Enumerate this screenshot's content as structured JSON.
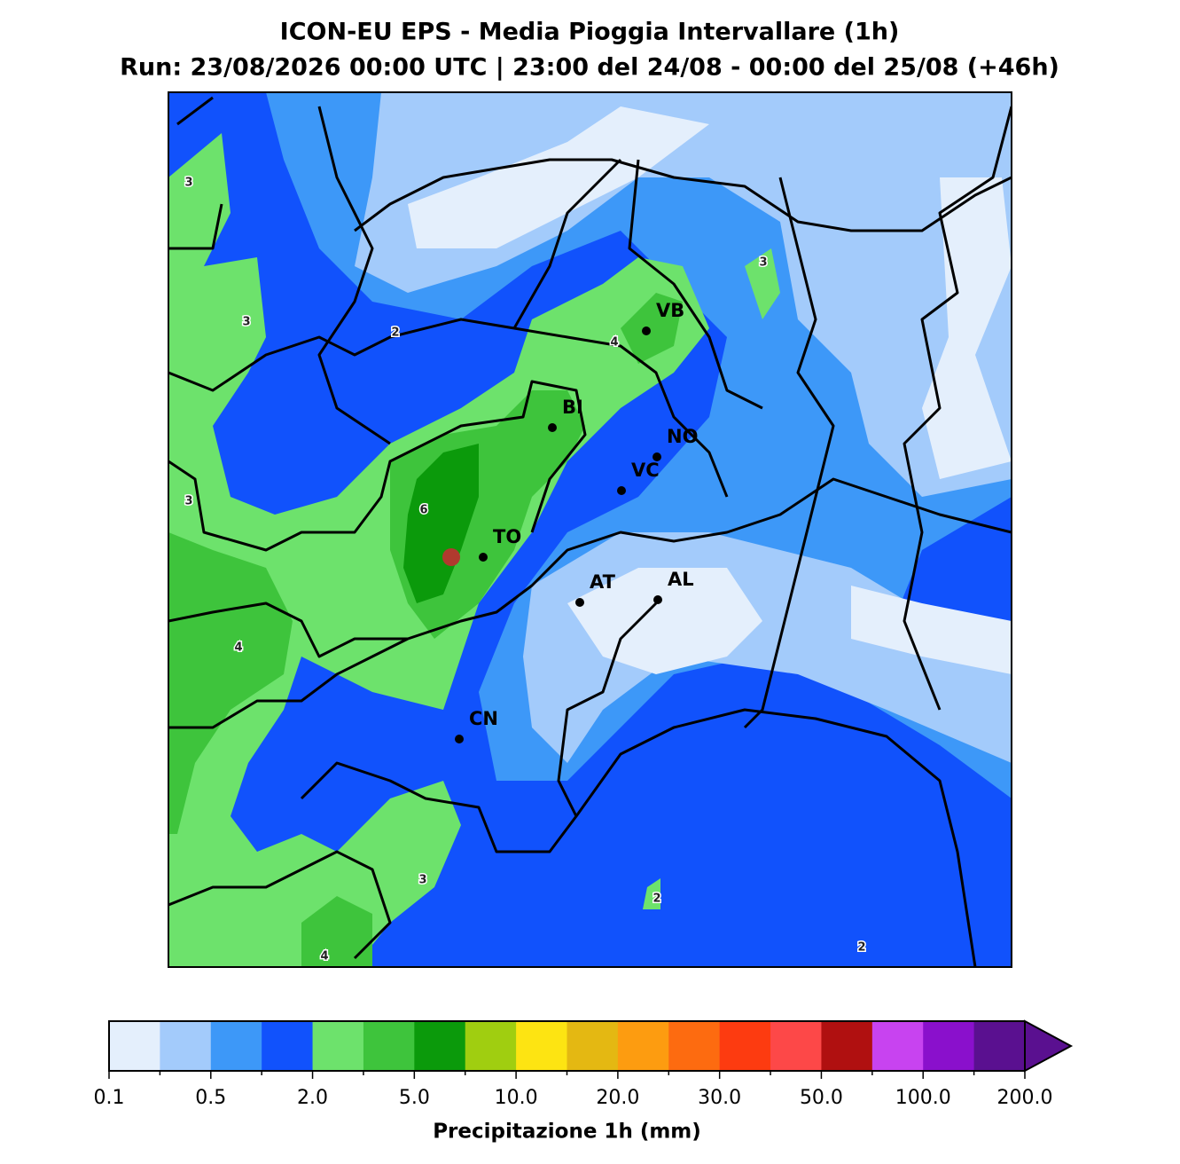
{
  "title": "ICON-EU EPS - Media Pioggia Intervallare (1h)",
  "subtitle": "Run: 23/08/2026 00:00 UTC | 23:00 del 24/08 - 00:00 del 25/08 (+46h)",
  "cities": [
    "VB",
    "BI",
    "NO",
    "VC",
    "TO",
    "AT",
    "AL",
    "CN"
  ],
  "contour_labels": [
    3,
    3,
    2,
    4,
    3,
    3,
    6,
    4,
    3,
    2,
    4,
    2
  ],
  "colorbar": {
    "label": "Precipitazione 1h (mm)",
    "colors": [
      "#e4effc",
      "#a3cbfb",
      "#3d98f8",
      "#1152fc",
      "#6de26c",
      "#3ec43c",
      "#0b9a0b",
      "#a0ce10",
      "#fde412",
      "#e4b812",
      "#fd9c10",
      "#fd6b10",
      "#fd3b10",
      "#fd4848",
      "#b01010",
      "#c843f0",
      "#8a10cc",
      "#5a1090"
    ],
    "ticks": [
      0.1,
      0.5,
      {
        "value": 2.0,
        "label": "2.0"
      },
      {
        "value": 5.0,
        "label": "5.0"
      },
      {
        "value": 10.0,
        "label": "10.0"
      },
      {
        "value": 20.0,
        "label": "20.0"
      },
      {
        "value": 30.0,
        "label": "30.0"
      },
      {
        "value": 50.0,
        "label": "50.0"
      },
      {
        "value": 100.0,
        "label": "100.0"
      },
      {
        "value": 200.0,
        "label": "200.0"
      }
    ],
    "extend": "max"
  }
}
